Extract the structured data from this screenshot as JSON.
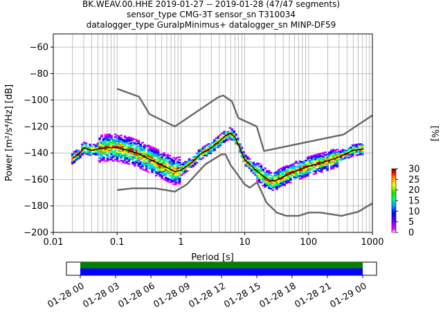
{
  "chart_data": [
    {
      "type": "heatmap",
      "title_lines": [
        "BK.WEAV.00.HHE   2019-01-27 -- 2019-01-28  (47/47 segments)",
        "sensor_type CMG-3T sensor_sn T310034",
        "datalogger_type GuralpMinimus+ datalogger_sn MINP-DF59"
      ],
      "xlabel": "Period [s]",
      "ylabel": "Power [m²/s⁴/Hz] [dB]",
      "xscale": "log",
      "xlim": [
        0.01,
        1000
      ],
      "ylim": [
        -200,
        -50
      ],
      "xticks": [
        0.01,
        0.1,
        1,
        10,
        100,
        1000
      ],
      "xtick_labels": [
        "0.01",
        "0.1",
        "1",
        "10",
        "100",
        "1000"
      ],
      "yticks": [
        -200,
        -180,
        -160,
        -140,
        -120,
        -100,
        -80,
        -60
      ],
      "ytick_labels": [
        "−200",
        "−180",
        "−160",
        "−140",
        "−120",
        "−100",
        "−80",
        "−60"
      ],
      "grid": true,
      "colorbar": {
        "label": "[%]",
        "range": [
          0,
          30
        ],
        "ticks": [
          0,
          5,
          10,
          15,
          20,
          25,
          30
        ],
        "tick_labels": [
          "0",
          "5",
          "10",
          "15",
          "20",
          "25",
          "30"
        ]
      },
      "series": [
        {
          "key": "nhnm",
          "x": [
            0.1,
            0.17,
            0.4,
            0.8,
            1.24,
            2.4,
            4.3,
            5,
            6,
            10,
            12,
            15.6,
            21.9,
            31.6,
            45,
            70,
            101,
            154,
            328,
            600,
            1000
          ],
          "y": [
            -168.0,
            -166.7,
            -166.7,
            -169.2,
            -163.7,
            -148.6,
            -141.1,
            -141.1,
            -149.0,
            -163.8,
            -166.2,
            -162.1,
            -177.5,
            -185.0,
            -187.5,
            -187.5,
            -185.0,
            -185.0,
            -187.5,
            -184.4,
            -178.0
          ]
        },
        {
          "key": "nlnm",
          "x": [
            0.1,
            0.22,
            0.32,
            0.8,
            3.8,
            4.6,
            6.3,
            7.9,
            15.4,
            20,
            354.8,
            1000
          ],
          "y": [
            -91.5,
            -97.4,
            -110.5,
            -120.0,
            -98.0,
            -96.5,
            -101.0,
            -113.5,
            -120.0,
            -138.5,
            -126.0,
            -111.5
          ]
        },
        {
          "key": "mode",
          "x": [
            0.02,
            0.025,
            0.03,
            0.04,
            0.05,
            0.07,
            0.1,
            0.15,
            0.2,
            0.3,
            0.5,
            0.8,
            1,
            1.5,
            2,
            3,
            4,
            5,
            6,
            7,
            8,
            10,
            15,
            20,
            25,
            30,
            40,
            60,
            100,
            200,
            300,
            500,
            700
          ],
          "y": [
            -144,
            -141,
            -136,
            -138,
            -137,
            -136,
            -136,
            -138,
            -140,
            -144,
            -149,
            -154,
            -153,
            -147,
            -141,
            -136,
            -131,
            -127,
            -125,
            -128,
            -134,
            -145,
            -153,
            -158,
            -161,
            -161,
            -158,
            -154,
            -150,
            -146,
            -143,
            -138,
            -137
          ]
        }
      ],
      "pdf_density_note": "",
      "data_availability": {
        "start_label": "01-28 00",
        "end_label": "01-29 00",
        "tick_labels": [
          "01-28 00",
          "01-28 03",
          "01-28 06",
          "01-28 09",
          "01-28 12",
          "01-28 15",
          "01-28 18",
          "01-28 21",
          "01-29 00"
        ],
        "bars": [
          {
            "name": "",
            "color": "#008000",
            "coverage": [
              0,
              24
            ]
          },
          {
            "name": "",
            "color": "#0000ff",
            "coverage": [
              0,
              24
            ]
          }
        ]
      }
    }
  ],
  "colors": {
    "model_line": "#666666",
    "mode_line": "#000000",
    "grid": "#b0b0b0"
  }
}
